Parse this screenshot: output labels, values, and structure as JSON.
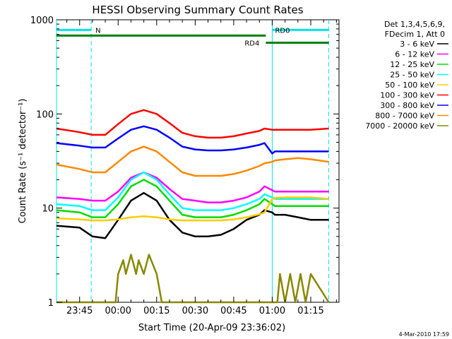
{
  "chart_data": {
    "type": "line",
    "title": "HESSI Observing Summary Count Rates",
    "ylabel": "Count Rate (s⁻¹ detector⁻¹)",
    "xlabel": "Start Time (20-Apr-09 23:36:02)",
    "yscale": "log",
    "ylim": [
      1,
      1000
    ],
    "xlim_minutes": [
      -9,
      101
    ],
    "x_ticks": [
      "23:45",
      "00:00",
      "00:15",
      "00:30",
      "00:45",
      "01:00",
      "01:15"
    ],
    "x_tick_minutes": [
      0,
      15,
      30,
      45,
      60,
      75,
      90
    ],
    "y_ticks": [
      "1",
      "10",
      "100",
      "1000"
    ],
    "y_tick_values": [
      1,
      10,
      100,
      1000
    ],
    "legend_header": [
      "Det 1,3,4,5,6,9,",
      "FDecim 1, Att 0"
    ],
    "legend_position": "right",
    "series": [
      {
        "name": "3 - 6 keV",
        "color": "#000000",
        "x": [
          -9,
          0,
          5,
          10,
          15,
          20,
          25,
          30,
          35,
          40,
          45,
          50,
          55,
          60,
          65,
          70,
          72,
          75,
          76,
          80,
          85,
          90,
          97
        ],
        "y": [
          6.5,
          6.2,
          5.0,
          4.8,
          7.5,
          12,
          14.5,
          12,
          7.5,
          5.5,
          5.0,
          5.0,
          5.2,
          6.0,
          7.5,
          8.5,
          9.5,
          9.0,
          8.5,
          8.5,
          8.0,
          7.5,
          7.5
        ]
      },
      {
        "name": "6 - 12 keV",
        "color": "#ff00ff",
        "x": [
          -9,
          0,
          5,
          10,
          15,
          20,
          25,
          30,
          35,
          40,
          45,
          50,
          55,
          60,
          65,
          70,
          72,
          75,
          76,
          80,
          85,
          90,
          97
        ],
        "y": [
          13,
          12.5,
          12,
          12,
          15,
          21,
          24,
          21,
          16,
          12.5,
          12,
          11.5,
          11.5,
          12,
          13,
          15,
          17,
          15.5,
          15,
          15,
          15,
          15,
          15
        ]
      },
      {
        "name": "12 - 25 keV",
        "color": "#00dd00",
        "x": [
          -9,
          0,
          5,
          10,
          15,
          20,
          25,
          30,
          35,
          40,
          45,
          50,
          55,
          60,
          65,
          70,
          72,
          75,
          76,
          80,
          85,
          90,
          97
        ],
        "y": [
          9.5,
          9.0,
          8.0,
          8.0,
          11,
          17,
          20,
          17,
          12,
          8.5,
          8.0,
          8.0,
          8.0,
          8.5,
          9.5,
          11,
          12.5,
          11,
          10.5,
          10.5,
          10.5,
          10.5,
          10.5
        ]
      },
      {
        "name": "25 - 50 keV",
        "color": "#00ffff",
        "x": [
          -9,
          0,
          5,
          10,
          15,
          20,
          25,
          30,
          35,
          40,
          45,
          50,
          55,
          60,
          65,
          70,
          72,
          75,
          76,
          80,
          85,
          90,
          97
        ],
        "y": [
          11,
          10.5,
          9.5,
          9.5,
          13,
          20,
          24,
          20,
          14,
          10,
          9.5,
          9.5,
          9.5,
          10,
          11,
          12.5,
          14,
          13,
          12.5,
          12.5,
          12.5,
          12.5,
          12.5
        ]
      },
      {
        "name": "50 - 100 keV",
        "color": "#ffcc00",
        "x": [
          -9,
          0,
          5,
          10,
          15,
          20,
          25,
          30,
          35,
          40,
          45,
          50,
          55,
          60,
          65,
          70,
          72,
          75,
          76,
          80,
          85,
          90,
          97
        ],
        "y": [
          7.8,
          7.6,
          7.4,
          7.4,
          7.6,
          8.0,
          8.2,
          8.0,
          7.6,
          7.4,
          7.4,
          7.4,
          7.4,
          7.6,
          8.0,
          8.6,
          9.0,
          12.5,
          12.8,
          13,
          13,
          13,
          12.5
        ]
      },
      {
        "name": "100 - 300 keV",
        "color": "#ff0000",
        "x": [
          -9,
          0,
          5,
          10,
          15,
          20,
          25,
          30,
          35,
          40,
          45,
          50,
          55,
          60,
          65,
          70,
          72,
          75,
          76,
          80,
          85,
          90,
          97
        ],
        "y": [
          70,
          64,
          60,
          60,
          78,
          100,
          110,
          100,
          80,
          63,
          58,
          56,
          56,
          58,
          62,
          66,
          70,
          68,
          68,
          68,
          68,
          68,
          70
        ]
      },
      {
        "name": "300 - 800 keV",
        "color": "#0000ff",
        "x": [
          -9,
          0,
          5,
          10,
          15,
          20,
          25,
          30,
          35,
          40,
          45,
          50,
          55,
          60,
          65,
          70,
          72,
          75,
          76,
          80,
          85,
          90,
          97
        ],
        "y": [
          49,
          46,
          44,
          44,
          55,
          68,
          74,
          68,
          56,
          45,
          42,
          41,
          41,
          42,
          44,
          47,
          49,
          38,
          40,
          40,
          40,
          40,
          40
        ]
      },
      {
        "name": "800 - 7000 keV",
        "color": "#ff8800",
        "x": [
          -9,
          0,
          5,
          10,
          15,
          20,
          25,
          30,
          35,
          40,
          45,
          50,
          55,
          60,
          65,
          70,
          72,
          75,
          76,
          80,
          85,
          90,
          97
        ],
        "y": [
          29,
          26,
          24,
          24,
          31,
          40,
          45,
          40,
          31,
          24,
          22,
          22,
          22,
          23,
          25,
          28,
          30,
          31,
          32,
          33,
          34,
          33,
          31
        ]
      },
      {
        "name": "7000 - 20000 keV",
        "color": "#888800",
        "x": [
          -9,
          10,
          14,
          15,
          17,
          18,
          20,
          22,
          23,
          25,
          27,
          30,
          32,
          40,
          70,
          77,
          78,
          80,
          82,
          84,
          86,
          88,
          90,
          97
        ],
        "y": [
          1,
          1,
          1,
          2,
          2.8,
          2,
          3.2,
          2,
          2.8,
          2,
          3.2,
          2,
          1,
          1,
          1,
          1,
          2,
          1,
          2,
          1,
          2,
          1,
          2,
          1
        ]
      }
    ],
    "annotations": [
      {
        "text": "N",
        "color": "#00e5e5",
        "x_start": -9,
        "x_end": 4.5,
        "y": 780
      },
      {
        "text": "RD0",
        "color": "#00e5e5",
        "x_start": 75,
        "x_end": 97,
        "y": 780
      },
      {
        "text": "RD4",
        "color": "#008000",
        "x_start": 72.5,
        "x_end": 97,
        "y": 570
      },
      {
        "text": "",
        "color": "#008000",
        "x_start": -9,
        "x_end": 72.5,
        "y": 680
      }
    ],
    "vlines": [
      {
        "x": -9,
        "style": "solid",
        "color": "#00e5e5"
      },
      {
        "x": 4.5,
        "style": "dashed",
        "color": "#00e5e5"
      },
      {
        "x": 75,
        "style": "solid",
        "color": "#00e5e5"
      },
      {
        "x": 97,
        "style": "dashed",
        "color": "#00e5e5"
      }
    ],
    "grid": false
  },
  "footer_timestamp": "4-Mar-2010 17:59"
}
